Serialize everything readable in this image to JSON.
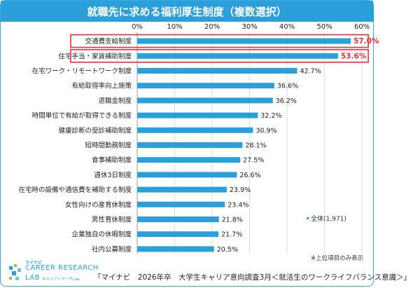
{
  "title": "就職先に求める福利厚生制度（複数選択）",
  "chart_data": {
    "type": "bar",
    "orientation": "horizontal",
    "categories": [
      "交通費支給制度",
      "住宅手当・家賃補助制度",
      "在宅ワーク・リモートワーク制度",
      "有給取得率向上施策",
      "退職金制度",
      "時間単位で有給が取得できる制度",
      "健康診断の受診補助制度",
      "短時間勤務制度",
      "食事補助制度",
      "週休3日制度",
      "在宅時の設備や通信費を補助する制度",
      "女性向けの産育休制度",
      "男性育休制度",
      "企業独自の休暇制度",
      "社内公募制度"
    ],
    "series": [
      {
        "name": "全体(1,971)",
        "values": [
          57.0,
          53.6,
          42.7,
          36.6,
          36.2,
          32.2,
          30.9,
          28.1,
          27.5,
          26.6,
          23.9,
          23.4,
          21.8,
          21.7,
          20.5
        ]
      }
    ],
    "value_labels": [
      "57.0%",
      "53.6%",
      "42.7%",
      "36.6%",
      "36.2%",
      "32.2%",
      "30.9%",
      "28.1%",
      "27.5%",
      "26.6%",
      "23.9%",
      "23.4%",
      "21.8%",
      "21.7%",
      "20.5%"
    ],
    "xlim": [
      0,
      60
    ],
    "x_ticks": [
      "0%",
      "10%",
      "20%",
      "30%",
      "40%",
      "50%",
      "60%"
    ],
    "highlighted": [
      0,
      1
    ],
    "highlight_color": "#e5323b",
    "bar_color": "#2b9fd9",
    "grid": true,
    "legend_position": "right",
    "xlabel": "",
    "ylabel": ""
  },
  "legend_label": "全体(1,971)",
  "note": "※上位項目のみ表示",
  "source": "「マイナビ　2026年卒　大学生キャリア意向調査3月＜就活生のワークライフバランス意識＞」",
  "logo": {
    "top": "マイナビ",
    "main": "CAREER RESEARCH",
    "lab": "LAB",
    "sub": "キャリアリサーチLab"
  },
  "colors": {
    "accent": "#2b9fd9",
    "highlight": "#e5323b"
  }
}
